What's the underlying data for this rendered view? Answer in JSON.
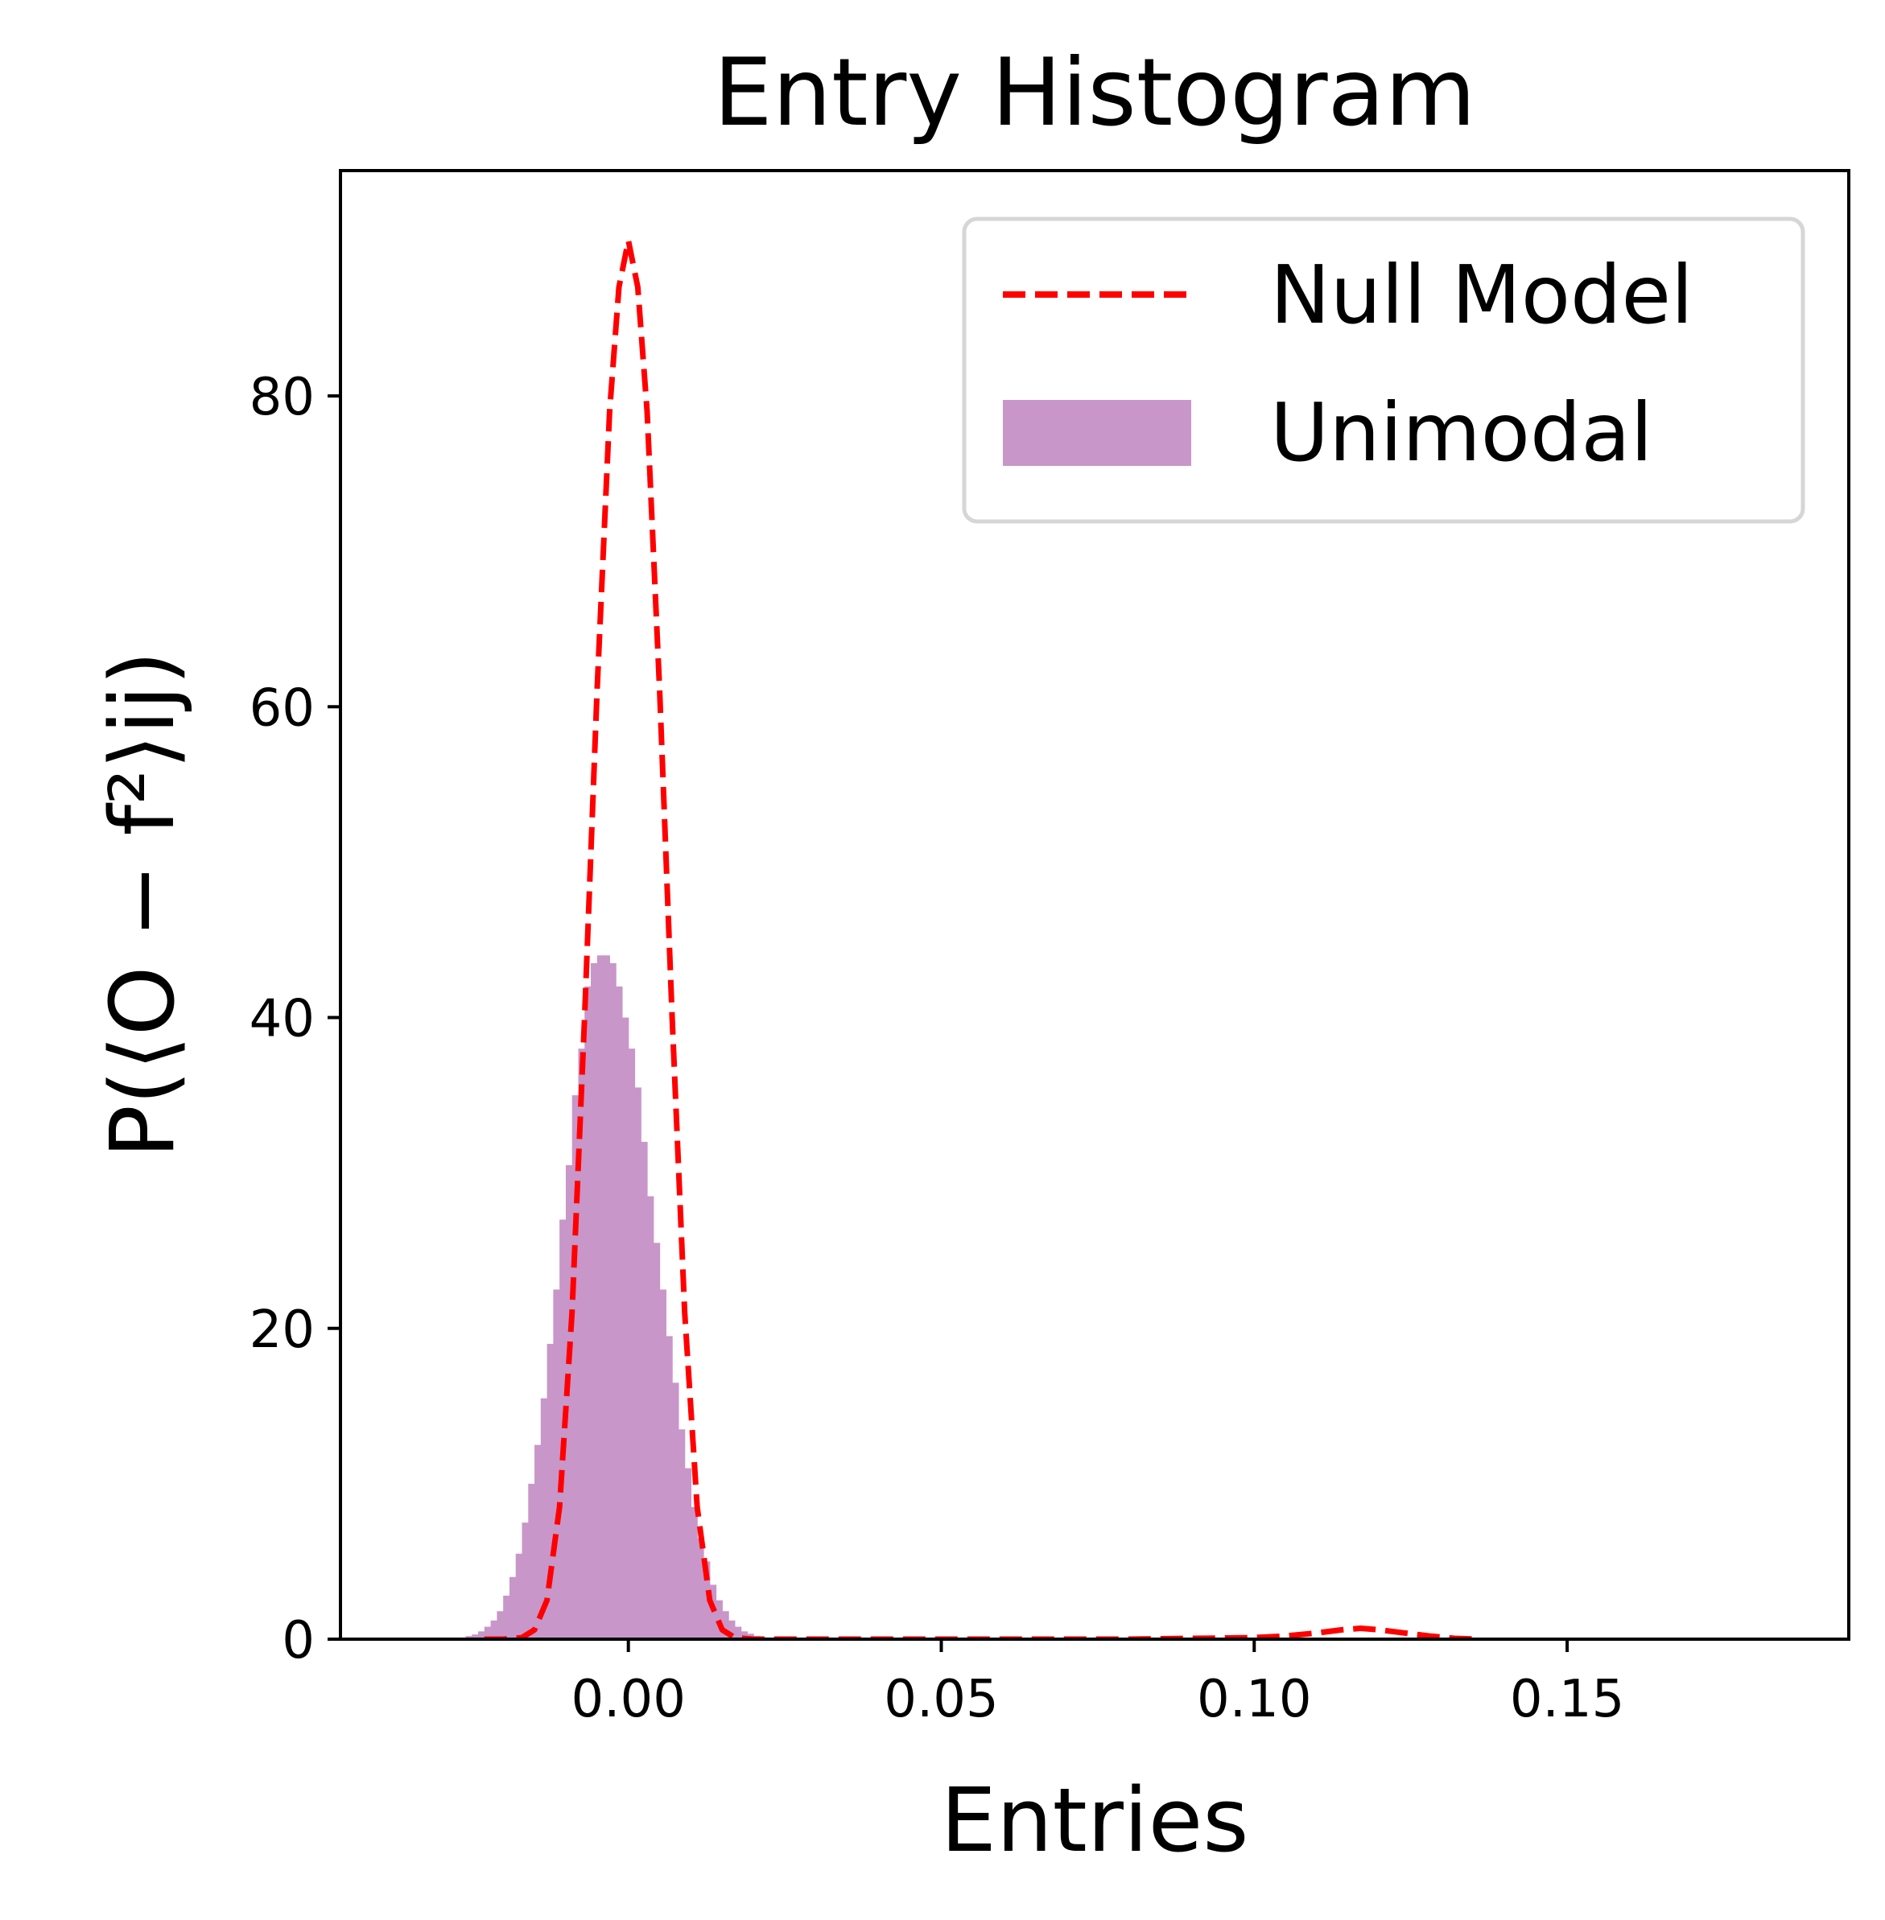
{
  "chart_data": {
    "type": "bar",
    "title": "Entry Histogram",
    "xlabel": "Entries",
    "ylabel": "P(⟨O − f²⟩ij)",
    "xlim": [
      -0.046,
      0.195
    ],
    "ylim": [
      0,
      94.5
    ],
    "xticks": [
      {
        "value": 0.0,
        "label": "0.00"
      },
      {
        "value": 0.05,
        "label": "0.05"
      },
      {
        "value": 0.1,
        "label": "0.10"
      },
      {
        "value": 0.15,
        "label": "0.15"
      }
    ],
    "yticks": [
      {
        "value": 0,
        "label": "0"
      },
      {
        "value": 20,
        "label": "20"
      },
      {
        "value": 40,
        "label": "40"
      },
      {
        "value": 60,
        "label": "60"
      },
      {
        "value": 80,
        "label": "80"
      }
    ],
    "grid": false,
    "legend_position": "top-right",
    "series": [
      {
        "name": "Null Model",
        "kind": "line",
        "style": "dashed",
        "color": "#ff0000",
        "x": [
          -0.023,
          -0.02,
          -0.017,
          -0.015,
          -0.013,
          -0.011,
          -0.009,
          -0.007,
          -0.005,
          -0.003,
          -0.0015,
          0.0,
          0.0015,
          0.003,
          0.005,
          0.007,
          0.009,
          0.011,
          0.013,
          0.015,
          0.017,
          0.02,
          0.03,
          0.05,
          0.08,
          0.1,
          0.105,
          0.11,
          0.114,
          0.117,
          0.12,
          0.124,
          0.128,
          0.132,
          0.136
        ],
        "y": [
          0.0,
          0.0,
          0.1,
          0.6,
          2.5,
          8.5,
          21.0,
          40.0,
          61.0,
          79.0,
          87.0,
          90.0,
          87.0,
          79.0,
          61.0,
          40.0,
          21.0,
          8.5,
          2.5,
          0.6,
          0.1,
          0.0,
          0.0,
          0.0,
          0.0,
          0.1,
          0.2,
          0.4,
          0.6,
          0.7,
          0.6,
          0.4,
          0.2,
          0.05,
          0.0
        ]
      },
      {
        "name": "Unimodal",
        "kind": "histogram",
        "color": "#c896c8",
        "bin_edges_start": -0.027,
        "bin_width": 0.001,
        "values": [
          0.1,
          0.2,
          0.3,
          0.5,
          0.8,
          1.2,
          1.8,
          2.8,
          4.0,
          5.5,
          7.5,
          10.0,
          12.5,
          15.5,
          19.0,
          22.5,
          27.0,
          30.5,
          35.0,
          38.0,
          42.0,
          43.5,
          44.0,
          44.0,
          43.5,
          42.0,
          40.0,
          38.0,
          35.5,
          32.0,
          28.5,
          25.5,
          22.5,
          19.5,
          16.5,
          13.5,
          11.0,
          8.5,
          6.5,
          5.0,
          3.5,
          2.5,
          1.8,
          1.2,
          0.8,
          0.5,
          0.35,
          0.2,
          0.12,
          0.08,
          0.05,
          0.03
        ]
      }
    ]
  }
}
